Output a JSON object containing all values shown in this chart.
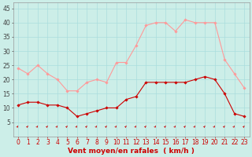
{
  "hours": [
    0,
    1,
    2,
    3,
    4,
    5,
    6,
    7,
    8,
    9,
    10,
    11,
    12,
    13,
    14,
    15,
    16,
    17,
    18,
    19,
    20,
    21,
    22,
    23
  ],
  "wind_avg": [
    11,
    12,
    12,
    11,
    11,
    10,
    7,
    8,
    9,
    10,
    10,
    13,
    14,
    19,
    19,
    19,
    19,
    19,
    20,
    21,
    20,
    15,
    8,
    7
  ],
  "wind_gust": [
    24,
    22,
    25,
    22,
    20,
    16,
    16,
    19,
    20,
    19,
    26,
    26,
    32,
    39,
    40,
    40,
    37,
    41,
    40,
    40,
    40,
    27,
    22,
    17
  ],
  "bg_color": "#cceee8",
  "grid_color": "#aadddd",
  "avg_color": "#cc0000",
  "gust_color": "#ff9999",
  "xlabel": "Vent moyen/en rafales  ( km/h )",
  "xlabel_color": "#cc0000",
  "ylim": [
    0,
    47
  ],
  "yticks": [
    5,
    10,
    15,
    20,
    25,
    30,
    35,
    40,
    45
  ],
  "xticks": [
    0,
    1,
    2,
    3,
    4,
    5,
    6,
    7,
    8,
    9,
    10,
    11,
    12,
    13,
    14,
    15,
    16,
    17,
    18,
    19,
    20,
    21,
    22,
    23
  ],
  "arrow_color": "#cc0000",
  "tick_fontsize": 5.5,
  "xlabel_fontsize": 6.5
}
